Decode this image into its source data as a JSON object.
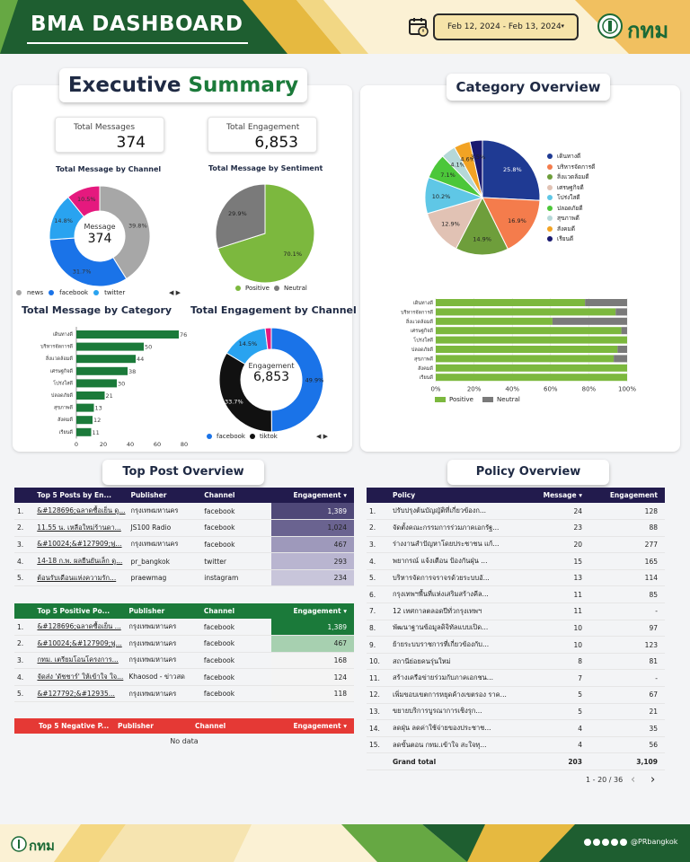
{
  "header": {
    "title": "BMA DASHBOARD",
    "date_range": "Feb 12, 2024 - Feb 13, 2024",
    "dropdown_arrow": "▾",
    "logo_text": "กทม",
    "icons": [
      "calendar-icon",
      "bma-seal-icon"
    ]
  },
  "exec": {
    "title_part1": "Executive",
    "title_part2": "Summary",
    "total_messages_label": "Total Messages",
    "total_messages": "374",
    "total_engagement_label": "Total Engagement",
    "total_engagement": "6,853",
    "channel_title": "Total Message by Channel",
    "sentiment_title": "Total Message by Sentiment",
    "category_title": "Total Message by Category",
    "eng_channel_title": "Total Engagement by Channel",
    "donut_label": "Message",
    "donut_value": "374",
    "eng_donut_label": "Engagement",
    "eng_donut_value": "6,853",
    "channel_legend": [
      "news",
      "facebook",
      "twitter"
    ],
    "sentiment_legend": [
      "Positive",
      "Neutral"
    ],
    "eng_legend": [
      "facebook",
      "tiktok"
    ],
    "pager_icons": "◀ ▶"
  },
  "colors": {
    "green": "#7cb83e",
    "grey": "#7a7a7a",
    "blue": "#1a73e8",
    "lightblue": "#1da1f2",
    "pink": "#e5197e",
    "darkgreen": "#1b7a3a",
    "navy": "#221b4d",
    "red": "#e53935"
  },
  "chart_data": [
    {
      "type": "pie",
      "title": "Total Message by Channel",
      "labels": [
        "news",
        "facebook",
        "twitter",
        "other"
      ],
      "values": [
        39.8,
        31.7,
        14.8,
        10.5
      ],
      "colors": [
        "#a7a7a7",
        "#1a73e8",
        "#29a3f0",
        "#e5197e"
      ]
    },
    {
      "type": "pie",
      "title": "Total Message by Sentiment",
      "labels": [
        "Positive",
        "Neutral"
      ],
      "values": [
        70.1,
        29.9
      ],
      "colors": [
        "#7cb83e",
        "#7a7a7a"
      ]
    },
    {
      "type": "bar",
      "title": "Total Message by Category",
      "categories": [
        "เดินทางดี",
        "บริหารจัดการดี",
        "สิ่งแวดล้อมดี",
        "เศรษฐกิจดี",
        "โปร่งใสดี",
        "ปลอดภัยดี",
        "สุขภาพดี",
        "สังคมดี",
        "เรียนดี"
      ],
      "values": [
        76,
        50,
        44,
        38,
        30,
        21,
        13,
        12,
        11
      ],
      "xlim": [
        0,
        80
      ],
      "xticks": [
        0,
        20,
        40,
        60,
        80
      ]
    },
    {
      "type": "pie",
      "title": "Total Engagement by Channel",
      "labels": [
        "facebook",
        "tiktok",
        "twitter",
        "other"
      ],
      "values": [
        49.9,
        33.7,
        14.5,
        1.9
      ],
      "colors": [
        "#1a73e8",
        "#111111",
        "#29a3f0",
        "#e5197e"
      ]
    },
    {
      "type": "pie",
      "title": "Category Overview",
      "labels": [
        "เดินทางดี",
        "บริหารจัดการดี",
        "สิ่งแวดล้อมดี",
        "เศรษฐกิจดี",
        "โปร่งใสดี",
        "ปลอดภัยดี",
        "สุขภาพดี",
        "สังคมดี",
        "เรียนดี"
      ],
      "values": [
        25.8,
        16.9,
        14.9,
        12.9,
        10.2,
        7.1,
        4.1,
        4.6,
        3.5
      ],
      "colors": [
        "#1f3a93",
        "#f47c4c",
        "#6e9e3b",
        "#e1c2b4",
        "#5fc7e6",
        "#4cc73a",
        "#b5d8d8",
        "#f2a324",
        "#191970"
      ]
    },
    {
      "type": "bar",
      "orientation": "horizontal",
      "stacked": true,
      "title": "Category Sentiment",
      "categories": [
        "เดินทางดี",
        "บริหารจัดการดี",
        "สิ่งแวดล้อมดี",
        "เศรษฐกิจดี",
        "โปร่งใสดี",
        "ปลอดภัยดี",
        "สุขภาพดี",
        "สังคมดี",
        "เรียนดี"
      ],
      "series": [
        {
          "name": "Positive",
          "values": [
            78,
            94,
            61,
            97,
            100,
            95,
            93,
            100,
            100
          ]
        },
        {
          "name": "Neutral",
          "values": [
            22,
            6,
            39,
            3,
            0,
            5,
            7,
            0,
            0
          ]
        }
      ],
      "xticks": [
        "0%",
        "20%",
        "40%",
        "60%",
        "80%",
        "100%"
      ]
    }
  ],
  "category_overview": {
    "title": "Category Overview",
    "legend": [
      "เดินทางดี",
      "บริหารจัดการดี",
      "สิ่งแวดล้อมดี",
      "เศรษฐกิจดี",
      "โปร่งใสดี",
      "ปลอดภัยดี",
      "สุขภาพดี",
      "สังคมดี",
      "เรียนดี"
    ],
    "bar_legend": [
      "Positive",
      "Neutral"
    ]
  },
  "top_post": {
    "title": "Top Post Overview",
    "top5_headers": [
      "Top 5 Posts by En...",
      "Publisher",
      "Channel",
      "Engagement ▾"
    ],
    "top5": [
      [
        "1.",
        "&#128696;ฉลาดซื้อเย็น ดู...",
        "กรุงเทพมหานคร",
        "facebook",
        "1,389"
      ],
      [
        "2.",
        "11.55 น. เหลือใหม่ร้านดา...",
        "JS100 Radio",
        "facebook",
        "1,024"
      ],
      [
        "3.",
        "&#10024;&#127909;ฟู...",
        "กรุงเทพมหานคร",
        "facebook",
        "467"
      ],
      [
        "4.",
        "14-18 ก.พ. ผลยืนยันเล็ก ดู...",
        "pr_bangkok",
        "twitter",
        "293"
      ],
      [
        "5.",
        "ต้อนรับเดือนแห่งความรัก...",
        "praewmag",
        "instagram",
        "234"
      ]
    ],
    "pos_headers": [
      "Top 5 Positive Po...",
      "Publisher",
      "Channel",
      "Engagement ▾"
    ],
    "pos": [
      [
        "1.",
        "&#128696;ฉลาดซื้อเย็น ...",
        "กรุงเทพมหานคร",
        "facebook",
        "1,389"
      ],
      [
        "2.",
        "&#10024;&#127909;ฟู...",
        "กรุงเทพมหานคร",
        "facebook",
        "467"
      ],
      [
        "3.",
        "กทม. เตรียมโอนโครงการ...",
        "กรุงเทพมหานคร",
        "facebook",
        "168"
      ],
      [
        "4.",
        "จัดส่ง 'ดัชชาร์' ให้เข้าใจ ใจ...",
        "Khaosod - ข่าวสด",
        "facebook",
        "124"
      ],
      [
        "5.",
        "&#127792;&#12935...",
        "กรุงเทพมหานคร",
        "facebook",
        "118"
      ]
    ],
    "neg_headers": [
      "Top 5 Negative P...",
      "Publisher",
      "Channel",
      "Engagement ▾"
    ],
    "no_data": "No data"
  },
  "policy": {
    "title": "Policy Overview",
    "headers": [
      "Policy",
      "Message ▾",
      "Engagement"
    ],
    "rows": [
      [
        "1.",
        "ปรับปรุงต้นบัญญัติที่เกี่ยวข้องก...",
        "24",
        "128"
      ],
      [
        "2.",
        "จัดตั้งคณะกรรมการร่วมภาคเอกรัฐ...",
        "23",
        "88"
      ],
      [
        "3.",
        "ร่างงานสำปัญหาโดยประชาชน แก้...",
        "20",
        "277"
      ],
      [
        "4.",
        "พยากรณ์ แจ้งเตือน ป้องกันฝุ่น ...",
        "15",
        "165"
      ],
      [
        "5.",
        "บริหารจัดการจราจรด้วยระบบอั...",
        "13",
        "114"
      ],
      [
        "6.",
        "กรุงเทพฯพื้นที่แห่งเสริมสร้างคีล...",
        "11",
        "85"
      ],
      [
        "7.",
        "12 เทศกาลตลอดปีทั่วกรุงเทพฯ",
        "11",
        "-"
      ],
      [
        "8.",
        "พัฒนาฐานข้อมูลดิจิทัลแบบเปิด...",
        "10",
        "97"
      ],
      [
        "9.",
        "ย้ายระบบราชการที่เกี่ยวข้องกับ...",
        "10",
        "123"
      ],
      [
        "10.",
        "สถานีย่อยคนรุ่นใหม่",
        "8",
        "81"
      ],
      [
        "11.",
        "สร้างเครือข่ายร่วมกับภาคเอกชน...",
        "7",
        "-"
      ],
      [
        "12.",
        "เพิ่มขอบเขตการหยุดค้างเขตรอง ราค...",
        "5",
        "67"
      ],
      [
        "13.",
        "ขยายบริการบูรณาการเชิงรุก...",
        "5",
        "21"
      ],
      [
        "14.",
        "ลดฝุ่น ลดค่าใช้จ่ายของประชาช...",
        "4",
        "35"
      ],
      [
        "15.",
        "ลดขั้นตอน กทม.เข้าใจ สะใจทุ...",
        "4",
        "56"
      ]
    ],
    "grand_total_label": "Grand total",
    "grand_total_msg": "203",
    "grand_total_eng": "3,109",
    "pager": "1 - 20 / 36",
    "prev": "‹",
    "next": "›"
  },
  "footer": {
    "logo_text": "กทม",
    "social": "@PRbangkok"
  }
}
